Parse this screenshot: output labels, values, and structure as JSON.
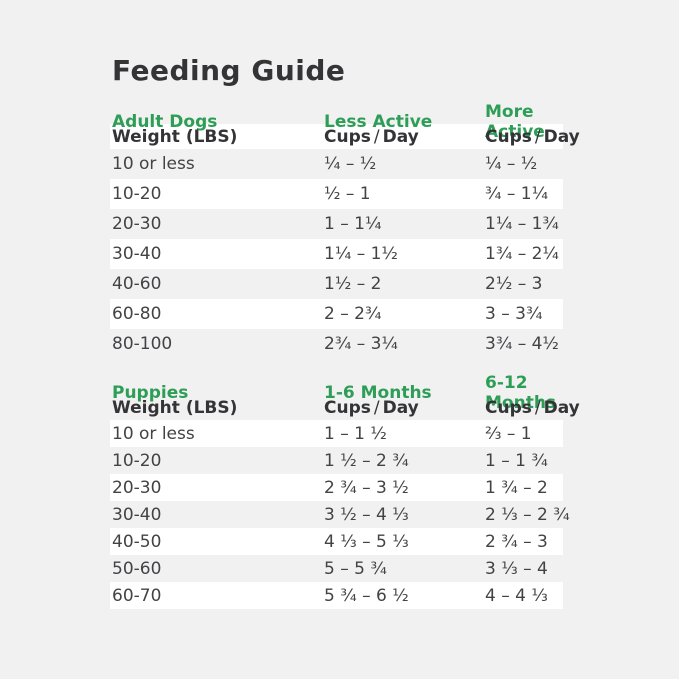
{
  "title": "Feeding Guide",
  "colors": {
    "background": "#f1f1f2",
    "stripe": "#ffffff",
    "accent_green": "#2E9E57",
    "heading_text": "#343437",
    "body_text": "#434346"
  },
  "labels": {
    "weight_header": "Weight (LBS)",
    "cups": "Cups",
    "slash": "/",
    "day": "Day"
  },
  "tables": [
    {
      "section": "Adult Dogs",
      "col2_header": "Less Active",
      "col3_header": "More Active",
      "rows": [
        {
          "weight": "10 or less",
          "col2": "¼ – ½",
          "col3": "¼ – ½"
        },
        {
          "weight": "10-20",
          "col2": "½ – 1",
          "col3": "¾ – 1¼"
        },
        {
          "weight": "20-30",
          "col2": "1 – 1¼",
          "col3": "1¼ – 1¾"
        },
        {
          "weight": "30-40",
          "col2": "1¼ – 1½",
          "col3": "1¾ – 2¼"
        },
        {
          "weight": "40-60",
          "col2": "1½ – 2",
          "col3": "2½ – 3"
        },
        {
          "weight": "60-80",
          "col2": "2 – 2¾",
          "col3": "3 – 3¾"
        },
        {
          "weight": "80-100",
          "col2": "2¾ – 3¼",
          "col3": "3¾ – 4½"
        }
      ]
    },
    {
      "section": "Puppies",
      "col2_header": "1-6 Months",
      "col3_header": "6-12 Months",
      "rows": [
        {
          "weight": "10 or less",
          "col2": "1 – 1 ½",
          "col3": "⅔ – 1"
        },
        {
          "weight": "10-20",
          "col2": "1 ½ – 2 ¾",
          "col3": "1 – 1 ¾"
        },
        {
          "weight": "20-30",
          "col2": "2 ¾ – 3 ½",
          "col3": "1 ¾ – 2"
        },
        {
          "weight": "30-40",
          "col2": "3 ½ – 4 ⅓",
          "col3": "2 ⅓ – 2 ¾"
        },
        {
          "weight": "40-50",
          "col2": "4 ⅓ – 5 ⅓",
          "col3": "2 ¾ – 3"
        },
        {
          "weight": "50-60",
          "col2": "5 – 5 ¾",
          "col3": "3 ⅓ – 4"
        },
        {
          "weight": "60-70",
          "col2": "5 ¾ – 6 ½",
          "col3": "4 – 4 ⅓"
        }
      ]
    }
  ]
}
